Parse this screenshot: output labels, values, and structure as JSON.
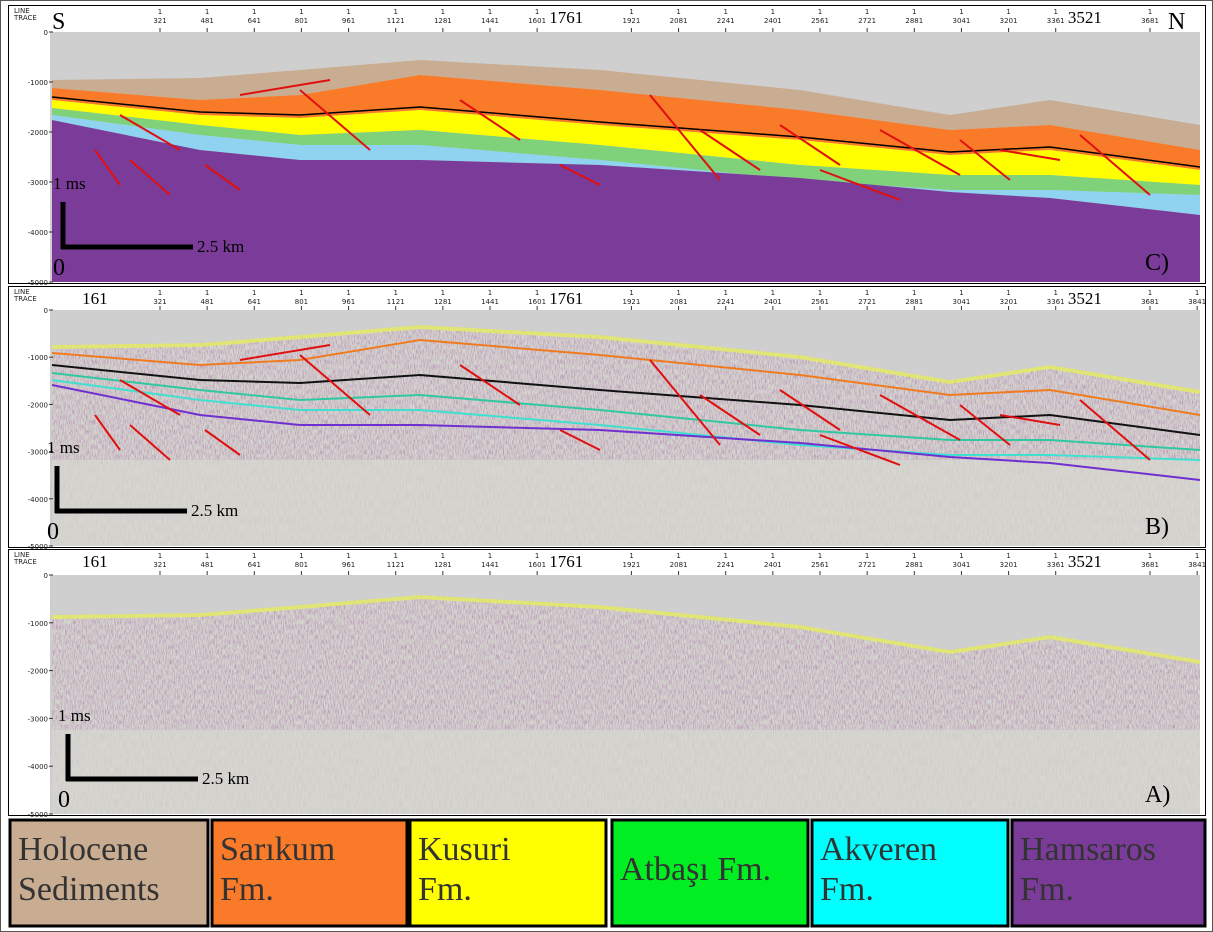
{
  "panels": [
    {
      "label": "C)",
      "header": [
        "LINE",
        "TRACE"
      ],
      "trace_prefix": "1",
      "left_dir": "S",
      "right_dir": "N",
      "traces": [
        321,
        481,
        641,
        801,
        961,
        1121,
        1281,
        1441,
        1601,
        1921,
        2081,
        2241,
        2401,
        2561,
        2721,
        2881,
        3041,
        3201,
        3361,
        3681
      ],
      "major_traces": [
        1761,
        3521
      ],
      "depths": [
        0,
        -1000,
        -2000,
        -3000,
        -4000,
        -5000
      ],
      "scale": {
        "vertical": "1 ms",
        "horizontal": "2.5 km",
        "origin": "0"
      }
    },
    {
      "label": "B)",
      "header": [
        "LINE",
        "TRACE"
      ],
      "trace_prefix": "1",
      "traces": [
        321,
        481,
        641,
        801,
        961,
        1121,
        1281,
        1441,
        1601,
        1921,
        2081,
        2241,
        2401,
        2561,
        2721,
        2881,
        3041,
        3201,
        3361,
        3681,
        3841
      ],
      "major_traces": [
        161,
        1761,
        3521
      ],
      "depths": [
        0,
        -1000,
        -2000,
        -3000,
        -4000,
        -5000
      ],
      "scale": {
        "vertical": "1 ms",
        "horizontal": "2.5 km",
        "origin": "0"
      }
    },
    {
      "label": "A)",
      "header": [
        "LINE",
        "TRACE"
      ],
      "trace_prefix": "1",
      "traces": [
        321,
        481,
        641,
        801,
        961,
        1121,
        1281,
        1441,
        1601,
        1921,
        2081,
        2241,
        2401,
        2561,
        2721,
        2881,
        3041,
        3201,
        3361,
        3681,
        3841
      ],
      "major_traces": [
        161,
        1761,
        3521
      ],
      "depths": [
        0,
        -1000,
        -2000,
        -3000,
        -4000,
        -5000
      ],
      "scale": {
        "vertical": "1 ms",
        "horizontal": "2.5 km",
        "origin": "0"
      }
    }
  ],
  "legend": [
    {
      "lines": [
        "Holocene",
        "Sediments"
      ],
      "color": "#c9ad92"
    },
    {
      "lines": [
        "Sarıkum",
        "Fm."
      ],
      "color": "#f97a28"
    },
    {
      "lines": [
        "Kusuri",
        "Fm."
      ],
      "color": "#ffff00"
    },
    {
      "lines": [
        "Atbaşı Fm."
      ],
      "color": "#00ee22"
    },
    {
      "lines": [
        "Akveren",
        "Fm."
      ],
      "color": "#00ffff"
    },
    {
      "lines": [
        "Hamsaros",
        "Fm."
      ],
      "color": "#7a3c98"
    }
  ]
}
